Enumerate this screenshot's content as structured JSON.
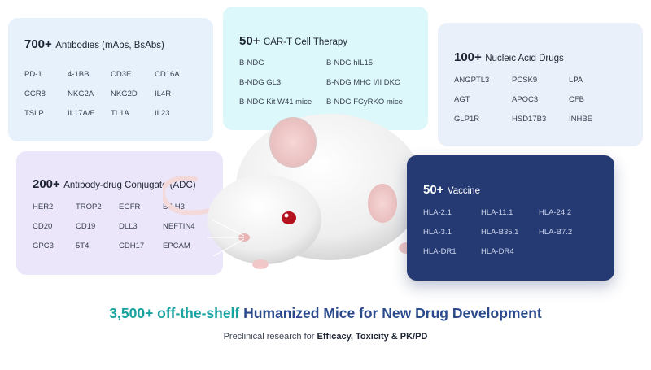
{
  "cards": {
    "antibodies": {
      "count": "700+",
      "label": "Antibodies (mAbs, BsAbs)",
      "items": [
        "PD-1",
        "4-1BB",
        "CD3E",
        "CD16A",
        "CCR8",
        "NKG2A",
        "NKG2D",
        "IL4R",
        "TSLP",
        "IL17A/F",
        "TL1A",
        "IL23"
      ]
    },
    "cart": {
      "count": "50+",
      "label": "CAR-T Cell Therapy",
      "items": [
        "B-NDG",
        "B-NDG hIL15",
        "B-NDG GL3",
        "B-NDG MHC I/II DKO",
        "B-NDG Kit W41 mice",
        "B-NDG FCyRKO mice"
      ]
    },
    "nucleic": {
      "count": "100+",
      "label": "Nucleic Acid Drugs",
      "items": [
        "ANGPTL3",
        "PCSK9",
        "LPA",
        "AGT",
        "APOC3",
        "CFB",
        "GLP1R",
        "HSD17B3",
        "INHBE"
      ]
    },
    "adc": {
      "count": "200+",
      "label": "Antibody-drug Conjugate (ADC)",
      "items": [
        "HER2",
        "TROP2",
        "EGFR",
        "B7-H3",
        "CD20",
        "CD19",
        "DLL3",
        "NEFTIN4",
        "GPC3",
        "5T4",
        "CDH17",
        "EPCAM"
      ]
    },
    "vaccine": {
      "count": "50+",
      "label": "Vaccine",
      "items": [
        "HLA-2.1",
        "HLA-11.1",
        "HLA-24.2",
        "HLA-3.1",
        "HLA-B35.1",
        "HLA-B7.2",
        "HLA-DR1",
        "HLA-DR4"
      ]
    }
  },
  "headline": {
    "part1": "3,500+ off-the-shelf ",
    "part2": "Humanized Mice for New Drug Development"
  },
  "subline": {
    "prefix": "Preclinical research for ",
    "emphasis": "Efficacy, Toxicity & PK/PD"
  },
  "colors": {
    "teal": "#18a3a0",
    "navy": "#2b4a8c",
    "vaccine_card": "#253a72"
  }
}
